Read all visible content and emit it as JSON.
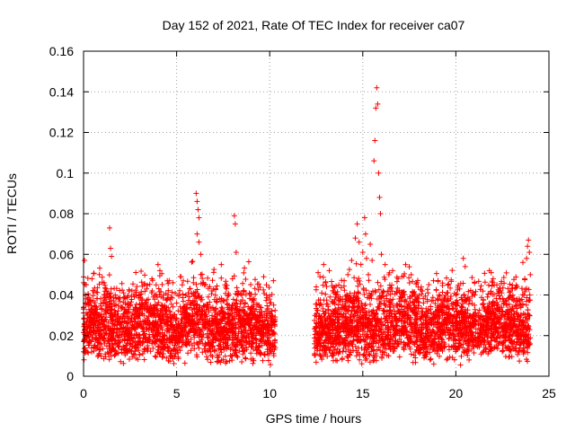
{
  "chart_data": {
    "type": "scatter",
    "title": "Day 152 of 2021, Rate Of TEC Index for receiver ca07",
    "xlabel": "GPS time / hours",
    "ylabel": "ROTI / TECUs",
    "xlim": [
      0,
      25
    ],
    "ylim": [
      0,
      0.16
    ],
    "xticks": [
      0,
      5,
      10,
      15,
      20,
      25
    ],
    "xtick_labels": [
      "0",
      "5",
      "10",
      "15",
      "20",
      "25"
    ],
    "yticks": [
      0,
      0.02,
      0.04,
      0.06,
      0.08,
      0.1,
      0.12,
      0.14,
      0.16
    ],
    "ytick_labels": [
      "0",
      "0.02",
      "0.04",
      "0.06",
      "0.08",
      "0.1",
      "0.12",
      "0.14",
      "0.16"
    ],
    "grid": true,
    "legend": "none",
    "marker": "+",
    "color": "#ff0000",
    "data_gap_hours": [
      10.3,
      12.4
    ],
    "series": [
      {
        "name": "ROTI",
        "points": [
          [
            0.0,
            0.046
          ],
          [
            0.05,
            0.057
          ],
          [
            0.1,
            0.036
          ],
          [
            0.2,
            0.03
          ],
          [
            0.3,
            0.022
          ],
          [
            0.5,
            0.025
          ],
          [
            0.7,
            0.034
          ],
          [
            0.8,
            0.03
          ],
          [
            1.0,
            0.028
          ],
          [
            1.1,
            0.046
          ],
          [
            1.2,
            0.043
          ],
          [
            1.4,
            0.073
          ],
          [
            1.45,
            0.063
          ],
          [
            1.5,
            0.059
          ],
          [
            1.7,
            0.04
          ],
          [
            1.9,
            0.038
          ],
          [
            2.2,
            0.033
          ],
          [
            2.4,
            0.034
          ],
          [
            2.6,
            0.042
          ],
          [
            2.8,
            0.04
          ],
          [
            3.0,
            0.03
          ],
          [
            3.3,
            0.026
          ],
          [
            3.6,
            0.035
          ],
          [
            3.9,
            0.045
          ],
          [
            4.0,
            0.055
          ],
          [
            4.1,
            0.052
          ],
          [
            4.3,
            0.04
          ],
          [
            4.5,
            0.038
          ],
          [
            4.6,
            0.047
          ],
          [
            4.8,
            0.046
          ],
          [
            5.0,
            0.036
          ],
          [
            5.2,
            0.049
          ],
          [
            5.3,
            0.045
          ],
          [
            5.5,
            0.04
          ],
          [
            5.7,
            0.043
          ],
          [
            5.9,
            0.046
          ],
          [
            6.05,
            0.09
          ],
          [
            6.1,
            0.086
          ],
          [
            6.15,
            0.082
          ],
          [
            6.2,
            0.078
          ],
          [
            6.1,
            0.07
          ],
          [
            6.2,
            0.066
          ],
          [
            6.3,
            0.06
          ],
          [
            6.3,
            0.05
          ],
          [
            6.5,
            0.045
          ],
          [
            6.7,
            0.039
          ],
          [
            6.9,
            0.042
          ],
          [
            7.1,
            0.043
          ],
          [
            7.3,
            0.038
          ],
          [
            7.4,
            0.055
          ],
          [
            7.6,
            0.045
          ],
          [
            7.8,
            0.04
          ],
          [
            8.0,
            0.048
          ],
          [
            8.1,
            0.079
          ],
          [
            8.15,
            0.075
          ],
          [
            8.2,
            0.061
          ],
          [
            8.3,
            0.04
          ],
          [
            8.6,
            0.034
          ],
          [
            8.9,
            0.03
          ],
          [
            9.2,
            0.032
          ],
          [
            9.5,
            0.034
          ],
          [
            9.8,
            0.032
          ],
          [
            10.0,
            0.036
          ],
          [
            10.2,
            0.047
          ],
          [
            12.5,
            0.044
          ],
          [
            12.6,
            0.051
          ],
          [
            12.7,
            0.049
          ],
          [
            12.8,
            0.041
          ],
          [
            12.9,
            0.055
          ],
          [
            13.0,
            0.046
          ],
          [
            13.2,
            0.052
          ],
          [
            13.4,
            0.042
          ],
          [
            13.6,
            0.04
          ],
          [
            13.8,
            0.038
          ],
          [
            14.0,
            0.047
          ],
          [
            14.2,
            0.05
          ],
          [
            14.4,
            0.057
          ],
          [
            14.6,
            0.068
          ],
          [
            14.7,
            0.075
          ],
          [
            14.8,
            0.066
          ],
          [
            14.9,
            0.055
          ],
          [
            15.0,
            0.061
          ],
          [
            15.1,
            0.078
          ],
          [
            15.15,
            0.07
          ],
          [
            15.2,
            0.058
          ],
          [
            15.3,
            0.05
          ],
          [
            15.4,
            0.065
          ],
          [
            15.5,
            0.057
          ],
          [
            15.6,
            0.106
          ],
          [
            15.65,
            0.116
          ],
          [
            15.7,
            0.132
          ],
          [
            15.75,
            0.142
          ],
          [
            15.8,
            0.134
          ],
          [
            15.85,
            0.1
          ],
          [
            15.9,
            0.088
          ],
          [
            15.95,
            0.08
          ],
          [
            16.0,
            0.06
          ],
          [
            16.2,
            0.055
          ],
          [
            16.4,
            0.05
          ],
          [
            16.6,
            0.052
          ],
          [
            16.9,
            0.048
          ],
          [
            17.1,
            0.049
          ],
          [
            17.3,
            0.055
          ],
          [
            17.6,
            0.05
          ],
          [
            17.9,
            0.046
          ],
          [
            18.2,
            0.042
          ],
          [
            18.5,
            0.041
          ],
          [
            18.8,
            0.047
          ],
          [
            19.1,
            0.04
          ],
          [
            19.4,
            0.035
          ],
          [
            19.7,
            0.038
          ],
          [
            20.0,
            0.04
          ],
          [
            20.2,
            0.043
          ],
          [
            20.4,
            0.058
          ],
          [
            20.5,
            0.054
          ],
          [
            20.7,
            0.038
          ],
          [
            21.0,
            0.035
          ],
          [
            21.2,
            0.03
          ],
          [
            21.5,
            0.034
          ],
          [
            21.7,
            0.039
          ],
          [
            21.8,
            0.052
          ],
          [
            21.9,
            0.051
          ],
          [
            22.0,
            0.048
          ],
          [
            22.2,
            0.045
          ],
          [
            22.4,
            0.042
          ],
          [
            22.6,
            0.036
          ],
          [
            22.9,
            0.033
          ],
          [
            23.2,
            0.035
          ],
          [
            23.4,
            0.038
          ],
          [
            23.6,
            0.056
          ],
          [
            23.7,
            0.048
          ],
          [
            23.8,
            0.058
          ],
          [
            23.85,
            0.064
          ],
          [
            23.9,
            0.067
          ],
          [
            23.95,
            0.061
          ],
          [
            24.0,
            0.05
          ]
        ]
      }
    ]
  }
}
